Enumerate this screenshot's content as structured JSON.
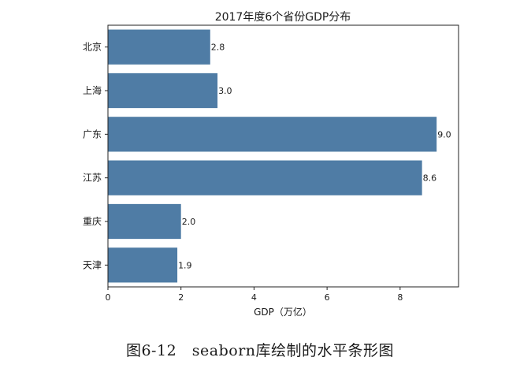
{
  "caption": "图6-12   seaborn库绘制的水平条形图",
  "chart_data": {
    "type": "bar",
    "orientation": "horizontal",
    "title": "2017年度6个省份GDP分布",
    "xlabel": "GDP（万亿）",
    "ylabel": "",
    "xlim": [
      0,
      9.6
    ],
    "xticks": [
      "0",
      "2",
      "4",
      "6",
      "8"
    ],
    "categories": [
      "北京",
      "上海",
      "广东",
      "江苏",
      "重庆",
      "天津"
    ],
    "values": [
      2.8,
      3.0,
      9.0,
      8.6,
      2.0,
      1.9
    ],
    "value_labels": [
      "2.8",
      "3.0",
      "9.0",
      "8.6",
      "2.0",
      "1.9"
    ],
    "bar_color": "#4f7ca5",
    "grid": false,
    "legend": "none"
  }
}
